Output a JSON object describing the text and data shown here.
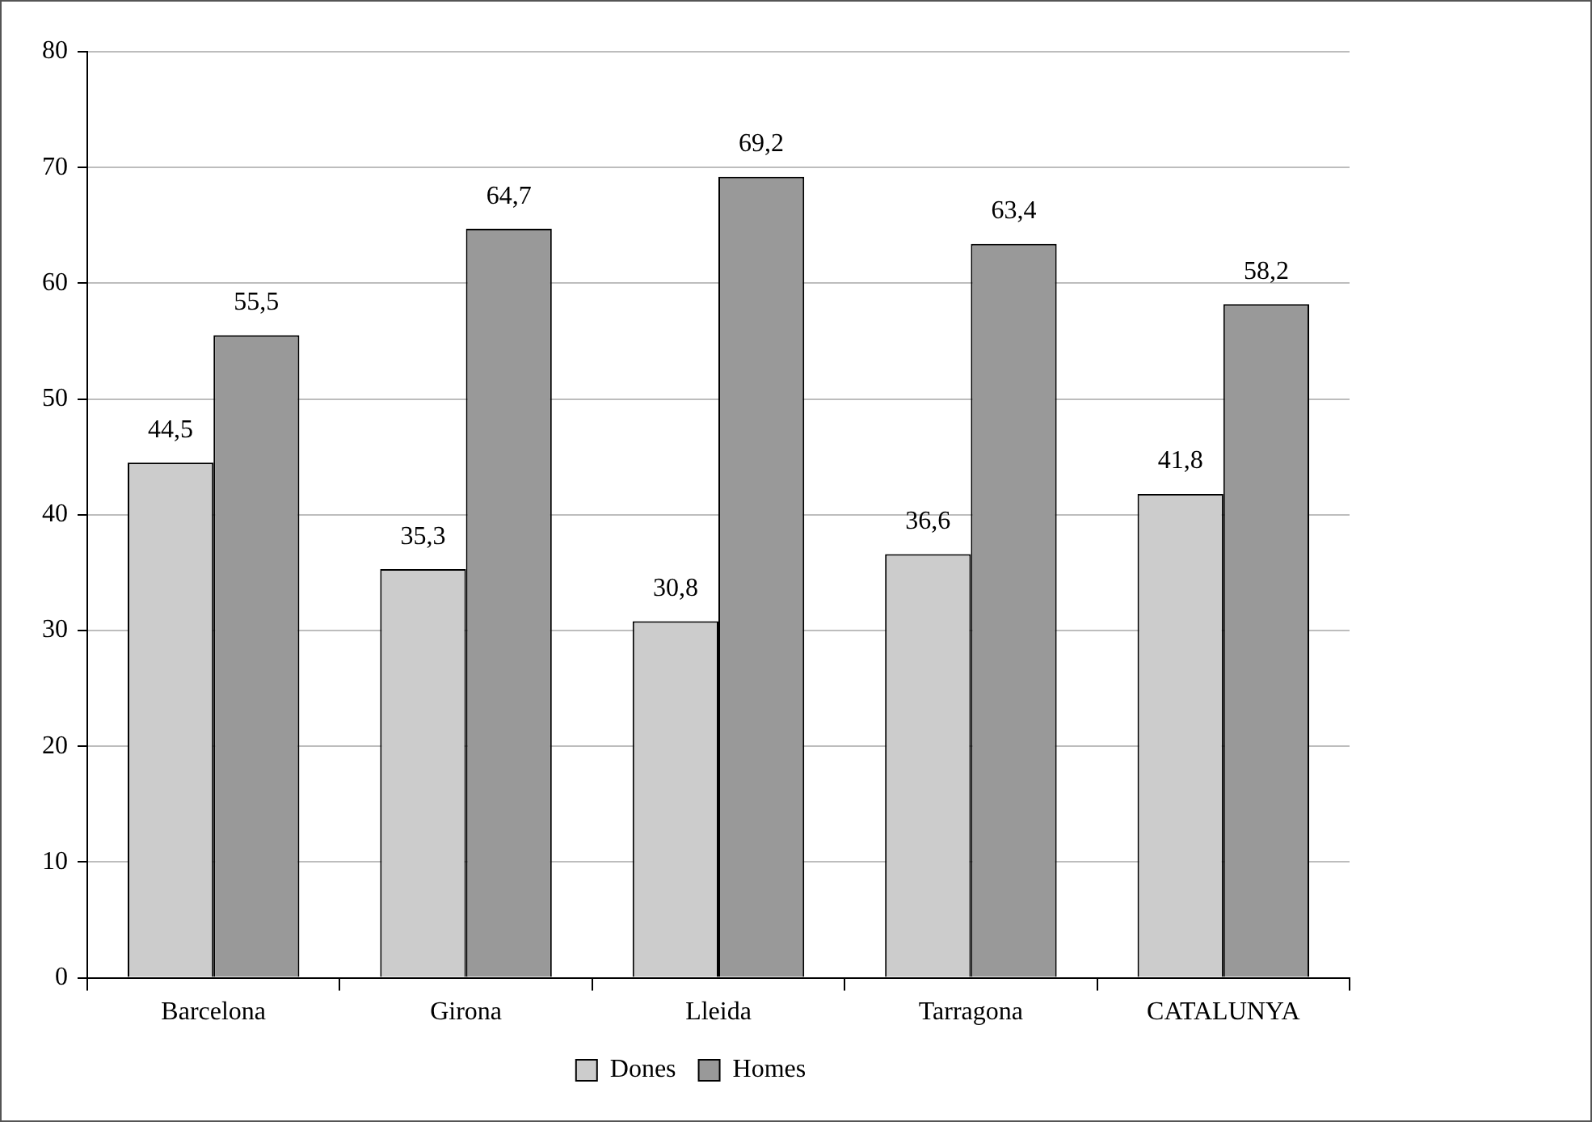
{
  "chart_data": {
    "type": "bar",
    "categories": [
      "Barcelona",
      "Girona",
      "Lleida",
      "Tarragona",
      "CATALUNYA"
    ],
    "series": [
      {
        "name": "Dones",
        "color": "#cccccc",
        "values": [
          44.5,
          35.3,
          30.8,
          36.6,
          41.8
        ],
        "value_labels": [
          "44,5",
          "35,3",
          "30,8",
          "36,6",
          "41,8"
        ]
      },
      {
        "name": "Homes",
        "color": "#999999",
        "values": [
          55.5,
          64.7,
          69.2,
          63.4,
          58.2
        ],
        "value_labels": [
          "55,5",
          "64,7",
          "69,2",
          "63,4",
          "58,2"
        ]
      }
    ],
    "ylim": [
      0,
      80
    ],
    "yticks": [
      0,
      10,
      20,
      30,
      40,
      50,
      60,
      70,
      80
    ],
    "grid": "y",
    "legend": "bottom"
  }
}
